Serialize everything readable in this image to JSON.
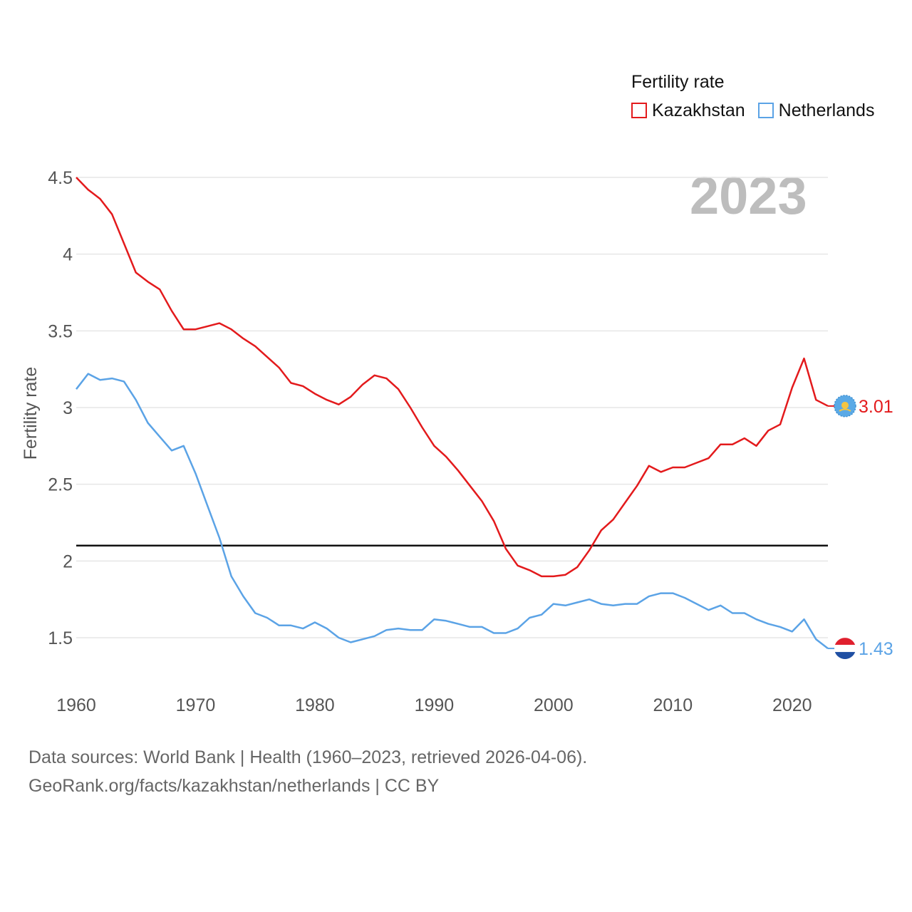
{
  "legend": {
    "title": "Fertility rate",
    "items": [
      {
        "name": "Kazakhstan",
        "color": "#e31a1c"
      },
      {
        "name": "Netherlands",
        "color": "#5ba3e6"
      }
    ]
  },
  "year_label": "2023",
  "source": {
    "line1": "Data sources: World Bank | Health (1960–2023, retrieved 2026-04-06).",
    "line2": "GeoRank.org/facts/kazakhstan/netherlands | CC BY"
  },
  "chart_data": {
    "type": "line",
    "title": "Fertility rate",
    "xlabel": "",
    "ylabel": "Fertility rate",
    "xlim": [
      1960,
      2023
    ],
    "ylim": [
      1.33,
      4.5
    ],
    "x_ticks": [
      1960,
      1970,
      1980,
      1990,
      2000,
      2010,
      2020
    ],
    "y_ticks": [
      1.5,
      2,
      2.5,
      3,
      3.5,
      4,
      4.5
    ],
    "y_tick_labels": [
      "1.5",
      "2",
      "2.5",
      "3",
      "3.5",
      "4",
      "4.5"
    ],
    "grid": true,
    "reference_line": {
      "y": 2.1,
      "color": "#111111"
    },
    "x": [
      1960,
      1961,
      1962,
      1963,
      1964,
      1965,
      1966,
      1967,
      1968,
      1969,
      1970,
      1971,
      1972,
      1973,
      1974,
      1975,
      1976,
      1977,
      1978,
      1979,
      1980,
      1981,
      1982,
      1983,
      1984,
      1985,
      1986,
      1987,
      1988,
      1989,
      1990,
      1991,
      1992,
      1993,
      1994,
      1995,
      1996,
      1997,
      1998,
      1999,
      2000,
      2001,
      2002,
      2003,
      2004,
      2005,
      2006,
      2007,
      2008,
      2009,
      2010,
      2011,
      2012,
      2013,
      2014,
      2015,
      2016,
      2017,
      2018,
      2019,
      2020,
      2021,
      2022,
      2023
    ],
    "series": [
      {
        "name": "Kazakhstan",
        "color": "#e31a1c",
        "end_label": "3.01",
        "values": [
          4.5,
          4.42,
          4.36,
          4.26,
          4.07,
          3.88,
          3.82,
          3.77,
          3.63,
          3.51,
          3.51,
          3.53,
          3.55,
          3.51,
          3.45,
          3.4,
          3.33,
          3.26,
          3.16,
          3.14,
          3.09,
          3.05,
          3.02,
          3.07,
          3.15,
          3.21,
          3.19,
          3.12,
          3.0,
          2.87,
          2.75,
          2.68,
          2.59,
          2.49,
          2.39,
          2.26,
          2.08,
          1.97,
          1.94,
          1.9,
          1.9,
          1.91,
          1.96,
          2.07,
          2.2,
          2.27,
          2.38,
          2.49,
          2.62,
          2.58,
          2.61,
          2.61,
          2.64,
          2.67,
          2.76,
          2.76,
          2.8,
          2.75,
          2.85,
          2.89,
          3.13,
          3.32,
          3.05,
          3.01
        ]
      },
      {
        "name": "Netherlands",
        "color": "#5ba3e6",
        "end_label": "1.43",
        "values": [
          3.12,
          3.22,
          3.18,
          3.19,
          3.17,
          3.05,
          2.9,
          2.81,
          2.72,
          2.75,
          2.57,
          2.36,
          2.15,
          1.9,
          1.77,
          1.66,
          1.63,
          1.58,
          1.58,
          1.56,
          1.6,
          1.56,
          1.5,
          1.47,
          1.49,
          1.51,
          1.55,
          1.56,
          1.55,
          1.55,
          1.62,
          1.61,
          1.59,
          1.57,
          1.57,
          1.53,
          1.53,
          1.56,
          1.63,
          1.65,
          1.72,
          1.71,
          1.73,
          1.75,
          1.72,
          1.71,
          1.72,
          1.72,
          1.77,
          1.79,
          1.79,
          1.76,
          1.72,
          1.68,
          1.71,
          1.66,
          1.66,
          1.62,
          1.59,
          1.57,
          1.54,
          1.62,
          1.49,
          1.43
        ]
      }
    ]
  }
}
